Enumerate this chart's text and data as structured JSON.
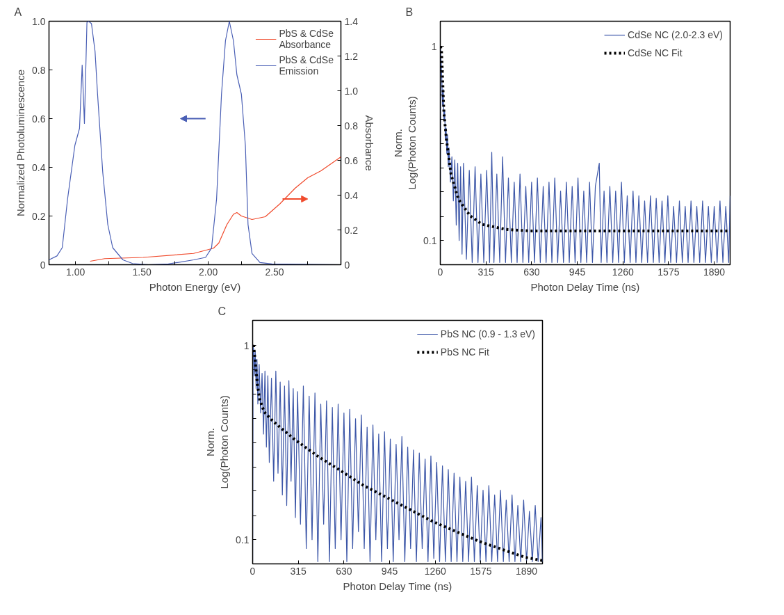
{
  "chart_data": [
    {
      "type": "line",
      "title": "A",
      "xlabel": "Photon Energy (eV)",
      "ylabel": "Normalized Photoluminescence",
      "y2label": "Absorbance",
      "xlim": [
        0.8,
        3.0
      ],
      "ylim": [
        0,
        1.0
      ],
      "y2lim": [
        0,
        1.4
      ],
      "xticks": [
        {
          "value": 1.0,
          "label": "1.00"
        },
        {
          "value": 1.25,
          "label": null
        },
        {
          "value": 1.5,
          "label": "1.50"
        },
        {
          "value": 1.75,
          "label": null
        },
        {
          "value": 2.0,
          "label": "2.00"
        },
        {
          "value": 2.25,
          "label": null
        },
        {
          "value": 2.5,
          "label": "2.50"
        },
        {
          "value": 2.75,
          "label": null
        }
      ],
      "yticks": [
        0,
        0.2,
        0.4,
        0.6,
        0.8,
        {
          "value": 1.0,
          "label": "1.0"
        }
      ],
      "y2ticks": [
        0,
        0.2,
        0.4,
        0.6,
        0.8,
        {
          "value": 1.0,
          "label": "1.0"
        },
        1.2,
        1.4
      ],
      "legend": "top right",
      "grid": false,
      "line_style": "solid",
      "series": [
        {
          "name": "PbS & CdSe\nAbsorbance",
          "color": "#f04a2c",
          "axis": "y2",
          "x": [
            1.11,
            1.22,
            1.51,
            1.89,
            2.04,
            2.08,
            2.14,
            2.19,
            2.216,
            2.25,
            2.33,
            2.43,
            2.54,
            2.655,
            2.75,
            2.85,
            3.0
          ],
          "values": [
            0.02,
            0.035,
            0.042,
            0.065,
            0.095,
            0.125,
            0.23,
            0.29,
            0.3,
            0.28,
            0.26,
            0.276,
            0.35,
            0.44,
            0.5,
            0.54,
            0.62
          ]
        },
        {
          "name": "PbS & CdSe\nEmission",
          "color": "#4a5fb5",
          "x": [
            0.8,
            0.86,
            0.9,
            0.94,
            0.995,
            1.03,
            1.05,
            1.067,
            1.086,
            1.098,
            1.12,
            1.147,
            1.166,
            1.205,
            1.243,
            1.28,
            1.357,
            1.43,
            1.55,
            1.7,
            1.89,
            1.98,
            2.025,
            2.063,
            2.1,
            2.13,
            2.159,
            2.19,
            2.216,
            2.25,
            2.28,
            2.3,
            2.33,
            2.39,
            2.48,
            3.0
          ],
          "values": [
            0.02,
            0.036,
            0.07,
            0.27,
            0.49,
            0.56,
            0.82,
            0.58,
            0.995,
            1.0,
            0.99,
            0.876,
            0.7,
            0.38,
            0.165,
            0.07,
            0.02,
            0.005,
            0,
            0.003,
            0.02,
            0.03,
            0.068,
            0.27,
            0.7,
            0.92,
            1.0,
            0.92,
            0.78,
            0.7,
            0.49,
            0.165,
            0.046,
            0.009,
            0.003,
            0
          ]
        }
      ]
    },
    {
      "type": "line",
      "title": "B",
      "xlabel": "Photon Delay Time (ns)",
      "ylabel": "Norm.\nLog(Photon Counts)",
      "log": "y",
      "xlim": [
        0,
        2000
      ],
      "ylim": [
        0.075,
        1.35
      ],
      "xticks": [
        0,
        315,
        630,
        945,
        1260,
        1575,
        1890
      ],
      "yticks": [
        {
          "value": 1,
          "label": "1"
        },
        {
          "value": 0.75,
          "label": null
        },
        {
          "value": 0.562,
          "label": null
        },
        {
          "value": 0.422,
          "label": null
        },
        {
          "value": 0.316,
          "label": null
        },
        {
          "value": 0.237,
          "label": null
        },
        {
          "value": 0.178,
          "label": null
        },
        {
          "value": 0.133,
          "label": null
        },
        {
          "value": 0.1,
          "label": "0.1"
        }
      ],
      "legend": "top right",
      "grid": false,
      "series": [
        {
          "name": "CdSe NC (2.0-2.3 eV)",
          "color": "#3d57a8",
          "line_style": "solid",
          "x": [
            0,
            2,
            5,
            10,
            15,
            20,
            25,
            30,
            35,
            40,
            45,
            50,
            55,
            60,
            70,
            80,
            90,
            100,
            110,
            120,
            130,
            140,
            150,
            160,
            180,
            200,
            220,
            240,
            260,
            280,
            300,
            320,
            340,
            355,
            370,
            390,
            410,
            430,
            450,
            470,
            490,
            510,
            530,
            550,
            570,
            590,
            610,
            630,
            650,
            670,
            690,
            710,
            730,
            750,
            770,
            790,
            810,
            830,
            850,
            870,
            890,
            910,
            930,
            950,
            970,
            990,
            1010,
            1030,
            1050,
            1070,
            1097,
            1110,
            1130,
            1150,
            1170,
            1190,
            1210,
            1230,
            1250,
            1270,
            1290,
            1310,
            1330,
            1350,
            1370,
            1390,
            1410,
            1430,
            1450,
            1470,
            1490,
            1510,
            1530,
            1550,
            1570,
            1590,
            1610,
            1630,
            1650,
            1670,
            1690,
            1710,
            1730,
            1750,
            1770,
            1790,
            1810,
            1830,
            1850,
            1870,
            1890,
            1910,
            1930,
            1950,
            1970,
            1990,
            2000
          ],
          "values": [
            0.077,
            0.97,
            0.85,
            0.7,
            0.5,
            0.6,
            0.42,
            0.47,
            0.33,
            0.38,
            0.28,
            0.35,
            0.24,
            0.3,
            0.2,
            0.27,
            0.16,
            0.26,
            0.12,
            0.25,
            0.1,
            0.24,
            0.085,
            0.25,
            0.08,
            0.23,
            0.077,
            0.24,
            0.077,
            0.22,
            0.077,
            0.23,
            0.077,
            0.285,
            0.077,
            0.22,
            0.077,
            0.27,
            0.077,
            0.21,
            0.077,
            0.2,
            0.077,
            0.22,
            0.077,
            0.19,
            0.077,
            0.2,
            0.077,
            0.21,
            0.077,
            0.19,
            0.077,
            0.2,
            0.077,
            0.21,
            0.077,
            0.18,
            0.077,
            0.2,
            0.077,
            0.19,
            0.077,
            0.21,
            0.077,
            0.18,
            0.077,
            0.2,
            0.077,
            0.19,
            0.25,
            0.077,
            0.18,
            0.077,
            0.19,
            0.077,
            0.18,
            0.077,
            0.2,
            0.077,
            0.17,
            0.077,
            0.18,
            0.077,
            0.17,
            0.077,
            0.16,
            0.077,
            0.17,
            0.077,
            0.165,
            0.077,
            0.16,
            0.077,
            0.17,
            0.077,
            0.15,
            0.077,
            0.16,
            0.077,
            0.15,
            0.077,
            0.16,
            0.077,
            0.15,
            0.077,
            0.16,
            0.077,
            0.15,
            0.077,
            0.15,
            0.077,
            0.16,
            0.077,
            0.15,
            0.077,
            0.17
          ]
        },
        {
          "name": "CdSe NC Fit",
          "color": "#000000",
          "line_style": "dotted",
          "x": [
            0,
            8,
            25,
            41,
            74,
            124,
            206,
            289,
            454,
            619,
            2000
          ],
          "values": [
            1.0,
            0.966,
            0.454,
            0.339,
            0.219,
            0.164,
            0.134,
            0.121,
            0.114,
            0.112,
            0.112
          ]
        }
      ]
    },
    {
      "type": "line",
      "title": "C",
      "xlabel": "Photon Delay Time (ns)",
      "ylabel": "Norm.\nLog(Photon Counts)",
      "log": "y",
      "xlim": [
        0,
        2000
      ],
      "ylim": [
        0.075,
        1.35
      ],
      "xticks": [
        0,
        315,
        630,
        945,
        1260,
        1575,
        1890
      ],
      "yticks": [
        {
          "value": 1,
          "label": "1"
        },
        {
          "value": 0.75,
          "label": null
        },
        {
          "value": 0.562,
          "label": null
        },
        {
          "value": 0.422,
          "label": null
        },
        {
          "value": 0.316,
          "label": null
        },
        {
          "value": 0.237,
          "label": null
        },
        {
          "value": 0.178,
          "label": null
        },
        {
          "value": 0.133,
          "label": null
        },
        {
          "value": 0.1,
          "label": "0.1"
        }
      ],
      "legend": "top right",
      "grid": false,
      "series": [
        {
          "name": "PbS NC (0.9 - 1.3 eV)",
          "color": "#3d57a8",
          "line_style": "solid",
          "x": [
            0,
            3,
            8,
            12,
            18,
            24,
            30,
            36,
            45,
            55,
            65,
            75,
            85,
            95,
            105,
            115,
            130,
            145,
            160,
            175,
            190,
            205,
            220,
            235,
            250,
            265,
            280,
            295,
            310,
            330,
            350,
            370,
            390,
            410,
            430,
            450,
            470,
            490,
            510,
            530,
            550,
            570,
            590,
            610,
            630,
            650,
            670,
            690,
            710,
            730,
            750,
            770,
            790,
            810,
            830,
            850,
            870,
            890,
            910,
            930,
            950,
            970,
            990,
            1010,
            1030,
            1050,
            1070,
            1090,
            1110,
            1130,
            1150,
            1170,
            1190,
            1210,
            1230,
            1250,
            1270,
            1290,
            1310,
            1330,
            1350,
            1370,
            1390,
            1410,
            1430,
            1450,
            1470,
            1490,
            1510,
            1530,
            1550,
            1570,
            1590,
            1610,
            1630,
            1650,
            1670,
            1690,
            1710,
            1730,
            1750,
            1770,
            1790,
            1810,
            1830,
            1850,
            1870,
            1890,
            1910,
            1930,
            1950,
            1970,
            1990,
            2000
          ],
          "values": [
            0.077,
            0.99,
            0.95,
            0.7,
            0.93,
            0.6,
            0.85,
            0.5,
            0.8,
            0.45,
            0.72,
            0.35,
            0.74,
            0.3,
            0.7,
            0.25,
            0.68,
            0.2,
            0.74,
            0.22,
            0.65,
            0.17,
            0.62,
            0.15,
            0.66,
            0.2,
            0.6,
            0.13,
            0.58,
            0.12,
            0.62,
            0.09,
            0.55,
            0.1,
            0.57,
            0.077,
            0.5,
            0.12,
            0.52,
            0.077,
            0.48,
            0.09,
            0.5,
            0.1,
            0.45,
            0.077,
            0.47,
            0.09,
            0.42,
            0.11,
            0.44,
            0.09,
            0.38,
            0.077,
            0.39,
            0.1,
            0.35,
            0.077,
            0.36,
            0.09,
            0.33,
            0.077,
            0.31,
            0.1,
            0.34,
            0.077,
            0.3,
            0.09,
            0.29,
            0.077,
            0.28,
            0.09,
            0.26,
            0.077,
            0.27,
            0.08,
            0.25,
            0.077,
            0.24,
            0.077,
            0.23,
            0.077,
            0.22,
            0.077,
            0.21,
            0.077,
            0.2,
            0.077,
            0.21,
            0.077,
            0.19,
            0.077,
            0.18,
            0.077,
            0.19,
            0.077,
            0.17,
            0.077,
            0.18,
            0.077,
            0.16,
            0.077,
            0.17,
            0.077,
            0.15,
            0.077,
            0.16,
            0.077,
            0.14,
            0.077,
            0.15,
            0.077,
            0.13,
            0.077
          ]
        },
        {
          "name": "PbS NC Fit",
          "color": "#000000",
          "line_style": "dotted",
          "x": [
            0,
            8,
            32,
            48,
            80,
            144,
            287,
            447,
            606,
            766,
            925,
            1085,
            1244,
            1404,
            1563,
            1723,
            1882,
            2000
          ],
          "values": [
            1.0,
            0.99,
            0.64,
            0.53,
            0.455,
            0.405,
            0.33,
            0.27,
            0.227,
            0.19,
            0.165,
            0.143,
            0.124,
            0.11,
            0.098,
            0.089,
            0.081,
            0.078
          ]
        }
      ]
    }
  ]
}
